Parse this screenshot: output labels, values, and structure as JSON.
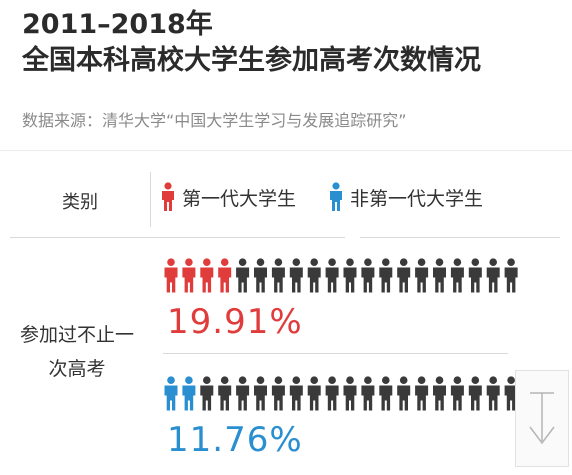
{
  "title": {
    "line1": "2011–2018年",
    "line2": "全国本科高校大学生参加高考次数情况"
  },
  "source": "数据来源：清华大学“中国大学生学习与发展追踪研究”",
  "colors": {
    "first_gen": "#e03c3c",
    "non_first_gen": "#2a8fd0",
    "other": "#3a3a3a"
  },
  "chart_data": {
    "type": "pictogram",
    "header": "类别",
    "category_label": "参加过不止一次高考",
    "icons_per_row": 20,
    "series": [
      {
        "name": "第一代大学生",
        "value": 19.91,
        "unit": "%",
        "value_label": "19.91%",
        "color": "#e03c3c"
      },
      {
        "name": "非第一代大学生",
        "value": 11.76,
        "unit": "%",
        "value_label": "11.76%",
        "color": "#2a8fd0"
      }
    ]
  }
}
